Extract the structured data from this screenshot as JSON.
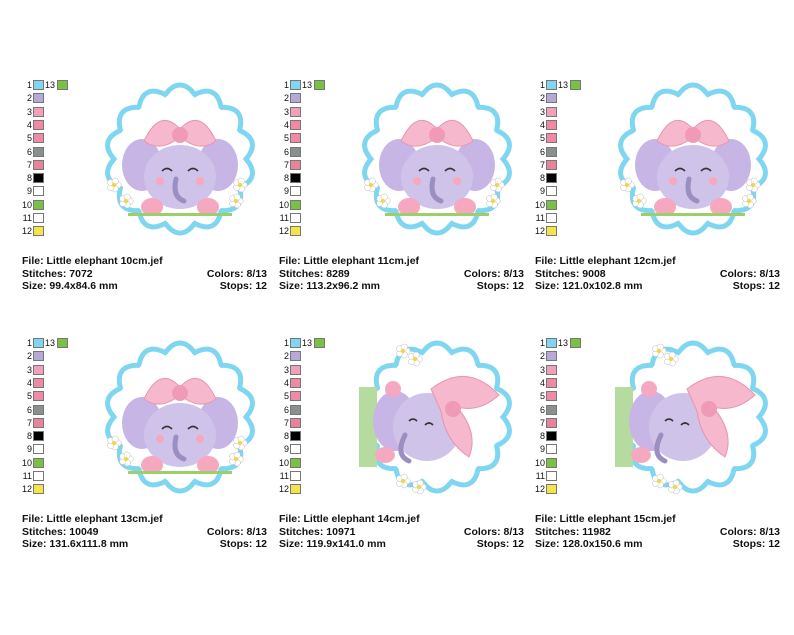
{
  "palette": [
    "#7fd6f0",
    "#b8a8d8",
    "#f0a0b8",
    "#f08aa4",
    "#f08aa4",
    "#8a8f8f",
    "#e8839c",
    "#000000",
    "#ffffff",
    "#7ac043",
    "#ffffff",
    "#f5e34a",
    "#7ac043"
  ],
  "designs": [
    {
      "file_label": "File: Little elephant 10cm.jef",
      "stitches_label": "Stitches: 7072",
      "size_label": "Size: 99.4x84.6 mm",
      "colors_label": "Colors: 8/13",
      "stops_label": "Stops: 12",
      "variant": "front"
    },
    {
      "file_label": "File: Little elephant 11cm.jef",
      "stitches_label": "Stitches: 8289",
      "size_label": "Size: 113.2x96.2 mm",
      "colors_label": "Colors: 8/13",
      "stops_label": "Stops: 12",
      "variant": "front"
    },
    {
      "file_label": "File: Little elephant 12cm.jef",
      "stitches_label": "Stitches: 9008",
      "size_label": "Size: 121.0x102.8 mm",
      "colors_label": "Colors: 8/13",
      "stops_label": "Stops: 12",
      "variant": "front"
    },
    {
      "file_label": "File: Little elephant 13cm.jef",
      "stitches_label": "Stitches: 10049",
      "size_label": "Size: 131.6x111.8 mm",
      "colors_label": "Colors: 8/13",
      "stops_label": "Stops: 12",
      "variant": "front"
    },
    {
      "file_label": "File: Little elephant 14cm.jef",
      "stitches_label": "Stitches: 10971",
      "size_label": "Size: 119.9x141.0 mm",
      "colors_label": "Colors: 8/13",
      "stops_label": "Stops: 12",
      "variant": "side"
    },
    {
      "file_label": "File: Little elephant 15cm.jef",
      "stitches_label": "Stitches: 11982",
      "size_label": "Size: 128.0x150.6 mm",
      "colors_label": "Colors: 8/13",
      "stops_label": "Stops: 12",
      "variant": "side"
    }
  ],
  "color_numbers": [
    "1",
    "2",
    "3",
    "4",
    "5",
    "6",
    "7",
    "8",
    "9",
    "10",
    "11",
    "12",
    "13"
  ]
}
